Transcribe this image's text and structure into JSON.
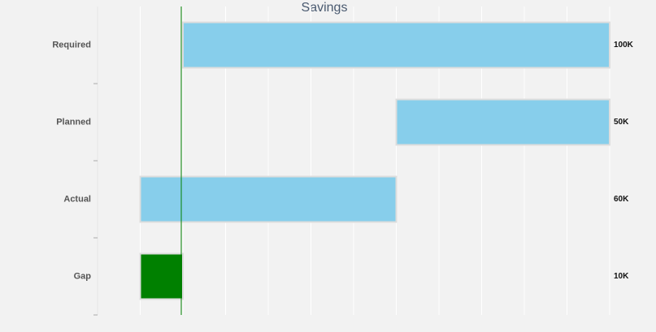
{
  "chart_data": {
    "type": "floating-bar",
    "title": "Savings",
    "categories": [
      "Required",
      "Planned",
      "Actual",
      "Gap"
    ],
    "starts": [
      0,
      50000,
      -10000,
      -10000
    ],
    "values": [
      100000,
      50000,
      60000,
      10000
    ],
    "value_labels": [
      "100K",
      "50K",
      "60K",
      "10K"
    ],
    "colors": [
      "#87ceeb",
      "#87ceeb",
      "#87ceeb",
      "#008000"
    ],
    "xlim": [
      -20000,
      100000
    ],
    "xticks": [
      -20000,
      -10000,
      0,
      10000,
      20000,
      30000,
      40000,
      50000,
      60000,
      70000,
      80000,
      90000,
      100000
    ],
    "grid": true,
    "zero_line_color": "#008000"
  }
}
